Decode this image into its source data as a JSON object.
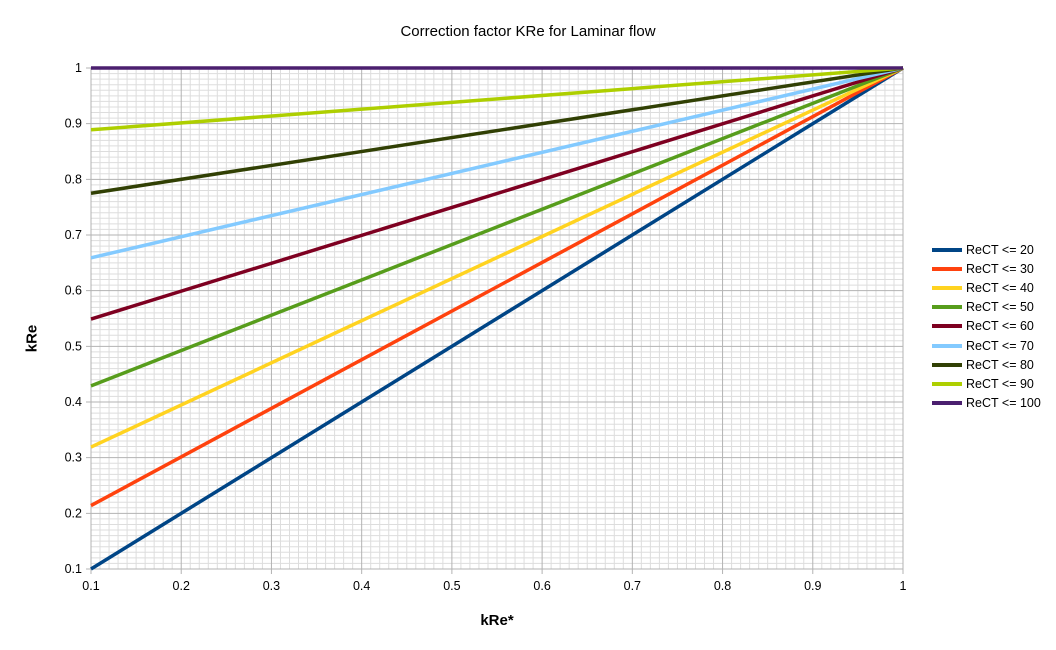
{
  "chart_data": {
    "type": "line",
    "title": "Correction factor KRe for Laminar flow",
    "xlabel": "kRe*",
    "ylabel": "kRe",
    "xlim": [
      0.1,
      1
    ],
    "ylim": [
      0.1,
      1
    ],
    "x_ticks": [
      "0.1",
      "0.2",
      "0.3",
      "0.4",
      "0.5",
      "0.6",
      "0.7",
      "0.8",
      "0.9",
      "1"
    ],
    "y_ticks": [
      "0.1",
      "0.2",
      "0.3",
      "0.4",
      "0.5",
      "0.6",
      "0.7",
      "0.8",
      "0.9",
      "1"
    ],
    "grid": {
      "major": true,
      "minor": true
    },
    "legend_position": "right",
    "series": [
      {
        "name": "ReCT <= 20",
        "color": "#004586",
        "x": [
          0.1,
          1
        ],
        "y": [
          0.1,
          1
        ]
      },
      {
        "name": "ReCT <= 30",
        "color": "#ff420e",
        "x": [
          0.1,
          1
        ],
        "y": [
          0.214,
          1
        ]
      },
      {
        "name": "ReCT <= 40",
        "color": "#ffd320",
        "x": [
          0.1,
          1
        ],
        "y": [
          0.319,
          1
        ]
      },
      {
        "name": "ReCT <= 50",
        "color": "#579d1c",
        "x": [
          0.1,
          1
        ],
        "y": [
          0.429,
          1
        ]
      },
      {
        "name": "ReCT <= 60",
        "color": "#7e0021",
        "x": [
          0.1,
          1
        ],
        "y": [
          0.549,
          1
        ]
      },
      {
        "name": "ReCT <= 70",
        "color": "#83caff",
        "x": [
          0.1,
          1
        ],
        "y": [
          0.659,
          1
        ]
      },
      {
        "name": "ReCT <= 80",
        "color": "#314004",
        "x": [
          0.1,
          1
        ],
        "y": [
          0.775,
          1
        ]
      },
      {
        "name": "ReCT <= 90",
        "color": "#aecf00",
        "x": [
          0.1,
          1
        ],
        "y": [
          0.889,
          1
        ]
      },
      {
        "name": "ReCT <= 100",
        "color": "#4b1f6f",
        "x": [
          0.1,
          1
        ],
        "y": [
          1,
          1
        ]
      }
    ]
  }
}
